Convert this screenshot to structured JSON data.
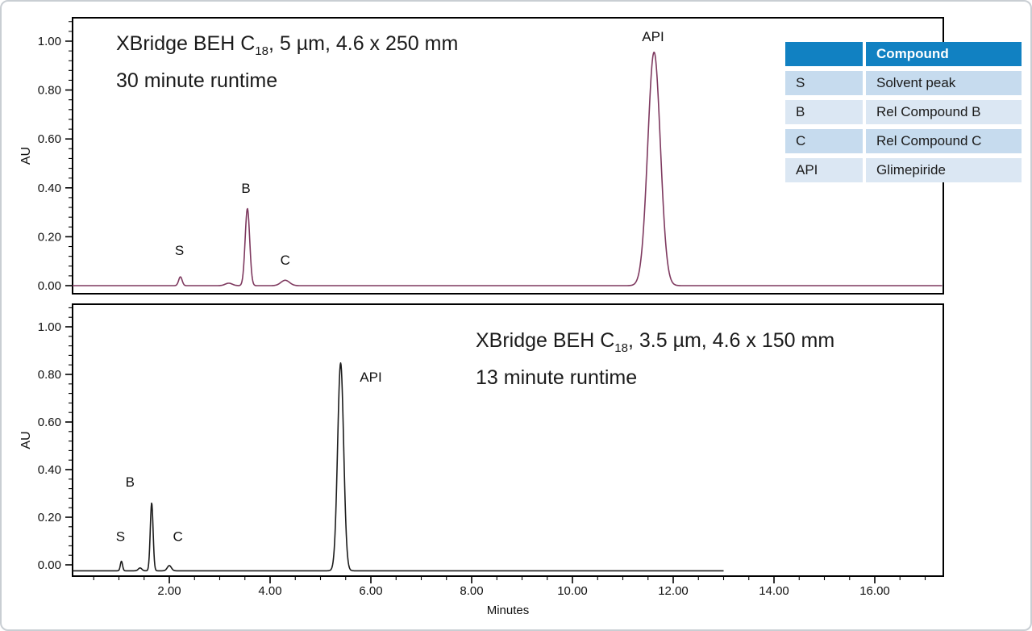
{
  "page": {
    "background": "#ffffff",
    "border_color": "#c9ced3"
  },
  "axes": {
    "x": {
      "label": "Minutes",
      "tick_values": [
        2,
        4,
        6,
        8,
        10,
        12,
        14,
        16
      ],
      "tick_labels": [
        "2.00",
        "4.00",
        "6.00",
        "8.00",
        "10.00",
        "12.00",
        "14.00",
        "16.00"
      ],
      "minor_step": 0.5,
      "range": [
        0,
        17.35
      ]
    },
    "y": {
      "label": "AU",
      "tick_values": [
        0,
        0.2,
        0.4,
        0.6,
        0.8,
        1.0
      ],
      "tick_labels": [
        "0.00",
        "0.20",
        "0.40",
        "0.60",
        "0.80",
        "1.00"
      ],
      "minor_step": 0.04,
      "range": [
        0,
        1.1
      ]
    }
  },
  "chart_data": [
    {
      "type": "line",
      "name": "top-chromatogram",
      "title": {
        "prefix": "XBridge BEH C",
        "sub": "18",
        "suffix": ", 5 µm, 4.6 x 250 mm",
        "line2": "30 minute runtime"
      },
      "color": "#7e395f",
      "xlabel": "Minutes",
      "ylabel": "AU",
      "xlim": [
        0,
        17.35
      ],
      "ylim": [
        0,
        1.1
      ],
      "baseline_au": 0.0,
      "t_start": 0.08,
      "t_end": 17.34,
      "peaks": [
        {
          "label": "S",
          "t": 2.22,
          "height": 0.036,
          "sigma": 0.035,
          "label_t": 2.2,
          "label_au": 0.145
        },
        {
          "label": "",
          "t": 3.18,
          "height": 0.01,
          "sigma": 0.07
        },
        {
          "label": "B",
          "t": 3.55,
          "height": 0.315,
          "sigma": 0.045,
          "label_t": 3.52,
          "label_au": 0.4
        },
        {
          "label": "C",
          "t": 4.3,
          "height": 0.022,
          "sigma": 0.085,
          "label_t": 4.3,
          "label_au": 0.105
        },
        {
          "label": "API",
          "t": 11.62,
          "height": 0.955,
          "sigma": 0.125,
          "label_t": 11.6,
          "label_au": 1.02
        }
      ]
    },
    {
      "type": "line",
      "name": "bottom-chromatogram",
      "title": {
        "prefix": "XBridge BEH C",
        "sub": "18",
        "suffix": ", 3.5 µm, 4.6 x 150 mm",
        "line2": "13 minute runtime"
      },
      "color": "#1c1c1c",
      "xlabel": "Minutes",
      "ylabel": "AU",
      "xlim": [
        0,
        17.35
      ],
      "ylim": [
        0,
        1.1
      ],
      "baseline_au": -0.025,
      "t_start": 0.08,
      "t_end": 13.0,
      "peaks": [
        {
          "label": "S",
          "t": 1.05,
          "height": 0.04,
          "sigma": 0.022,
          "label_t": 1.03,
          "label_au": 0.12
        },
        {
          "label": "",
          "t": 1.42,
          "height": 0.012,
          "sigma": 0.035
        },
        {
          "label": "B",
          "t": 1.65,
          "height": 0.285,
          "sigma": 0.028,
          "label_t": 1.22,
          "label_au": 0.35
        },
        {
          "label": "C",
          "t": 2.0,
          "height": 0.022,
          "sigma": 0.04,
          "label_t": 2.17,
          "label_au": 0.12
        },
        {
          "label": "API",
          "t": 5.4,
          "height": 0.873,
          "sigma": 0.06,
          "label_t": 6.0,
          "label_au": 0.79
        }
      ]
    }
  ],
  "legend_table": {
    "header": {
      "key": "",
      "compound": "Compound"
    },
    "rows": [
      {
        "key": "S",
        "compound": "Solvent peak"
      },
      {
        "key": "B",
        "compound": "Rel Compound B"
      },
      {
        "key": "C",
        "compound": "Rel Compound C"
      },
      {
        "key": "API",
        "compound": "Glimepiride"
      }
    ],
    "colors": {
      "header_bg": "#1181c2",
      "header_text": "#ffffff",
      "row_bg_odd": "#c6dbee",
      "row_bg_even": "#dbe7f3",
      "text": "#1b1b1b"
    }
  }
}
